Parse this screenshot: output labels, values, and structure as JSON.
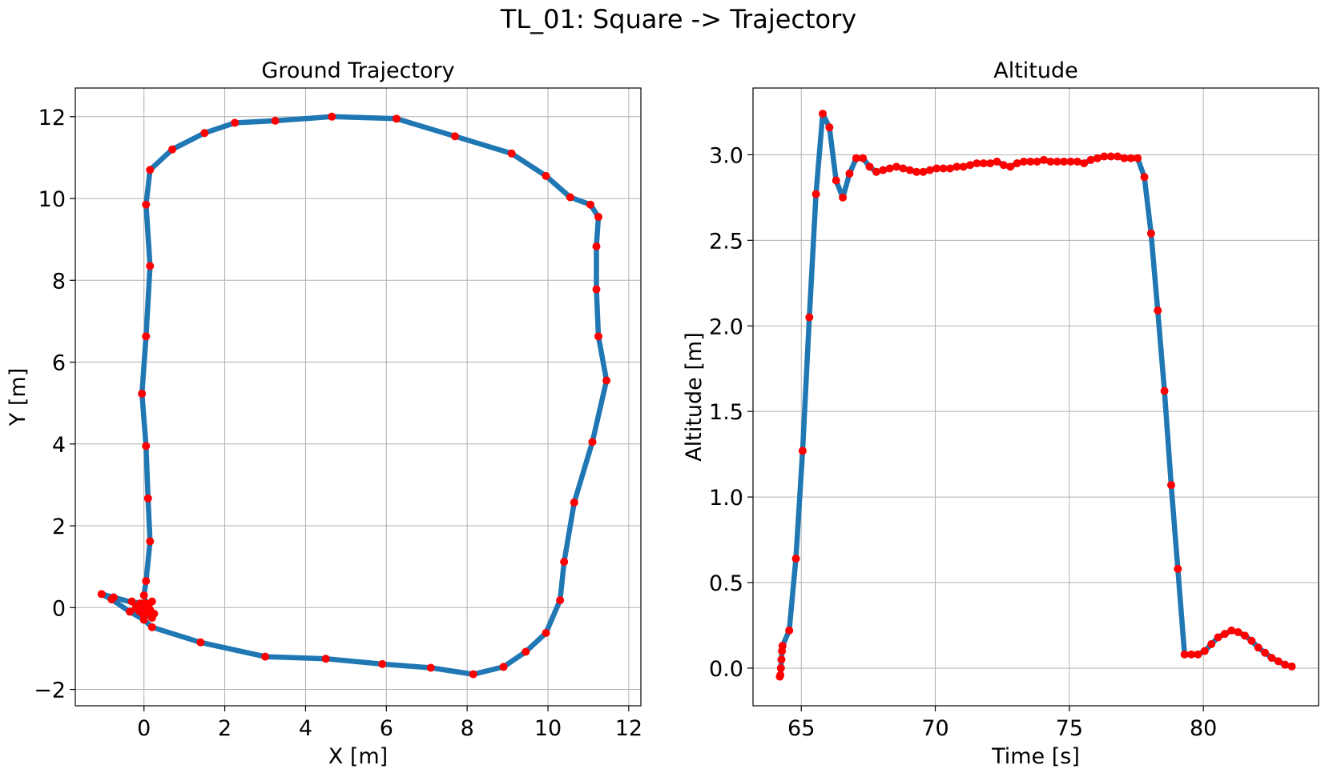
{
  "figure": {
    "title": "TL_01: Square -> Trajectory"
  },
  "colors": {
    "line": "#1f77b4",
    "marker": "#ff0000",
    "grid": "#b0b0b0",
    "axes": "#000000"
  },
  "chart_data": [
    {
      "type": "line",
      "title": "Ground Trajectory",
      "xlabel": "X [m]",
      "ylabel": "Y [m]",
      "xlim": [
        -1.7,
        12.3
      ],
      "ylim": [
        -2.4,
        12.7
      ],
      "xticks": [
        0,
        2,
        4,
        6,
        8,
        10,
        12
      ],
      "yticks": [
        -2,
        0,
        2,
        4,
        6,
        8,
        10,
        12
      ],
      "grid": true,
      "markers": true,
      "series": [
        {
          "x": [
            0.0,
            -0.1,
            0.1,
            -0.2,
            0.2,
            0.0,
            0.1,
            -0.3,
            0.2,
            -0.1,
            0.0,
            0.15,
            -0.05,
            0.25,
            0.05,
            -0.15,
            0.1,
            0.0,
            -0.75,
            -1.05,
            -0.8,
            -0.35,
            0.0,
            0.2,
            1.4,
            3.0,
            4.5,
            5.9,
            7.1,
            8.15,
            8.9,
            9.45,
            9.95,
            10.3,
            10.4,
            10.65,
            11.1,
            11.45,
            11.25,
            11.2,
            11.2,
            11.25,
            11.05,
            10.55,
            9.95,
            9.1,
            7.7,
            6.25,
            4.65,
            3.25,
            2.25,
            1.5,
            0.7,
            0.15,
            0.05,
            0.15,
            0.05,
            -0.05,
            0.05,
            0.1,
            0.15,
            0.05,
            0.0,
            0.05,
            0.0
          ],
          "y": [
            0.0,
            0.1,
            -0.1,
            0.0,
            0.15,
            -0.2,
            0.05,
            0.15,
            -0.25,
            -0.1,
            0.1,
            -0.05,
            0.05,
            -0.15,
            0.0,
            -0.05,
            -0.1,
            0.05,
            0.25,
            0.33,
            0.2,
            -0.1,
            -0.3,
            -0.48,
            -0.85,
            -1.2,
            -1.25,
            -1.38,
            -1.47,
            -1.63,
            -1.45,
            -1.08,
            -0.62,
            0.18,
            1.12,
            2.57,
            4.05,
            5.55,
            6.63,
            7.78,
            8.83,
            9.55,
            9.85,
            10.03,
            10.55,
            11.1,
            11.52,
            11.95,
            12.0,
            11.9,
            11.85,
            11.6,
            11.2,
            10.7,
            9.85,
            8.35,
            6.63,
            5.23,
            3.95,
            2.67,
            1.62,
            0.65,
            0.3,
            0.1,
            0.0
          ]
        }
      ]
    },
    {
      "type": "line",
      "title": "Altitude",
      "xlabel": "Time [s]",
      "ylabel": "Altitude [m]",
      "xlim": [
        63.2,
        84.3
      ],
      "ylim": [
        -0.22,
        3.39
      ],
      "xticks": [
        65,
        70,
        75,
        80
      ],
      "yticks": [
        0.0,
        0.5,
        1.0,
        1.5,
        2.0,
        2.5,
        3.0
      ],
      "grid": true,
      "markers": true,
      "series": [
        {
          "x": [
            64.2,
            64.22,
            64.24,
            64.26,
            64.28,
            64.3,
            64.55,
            64.8,
            65.05,
            65.3,
            65.55,
            65.8,
            66.05,
            66.3,
            66.55,
            66.8,
            67.05,
            67.3,
            67.55,
            67.8,
            68.05,
            68.3,
            68.55,
            68.8,
            69.05,
            69.3,
            69.55,
            69.8,
            70.05,
            70.3,
            70.55,
            70.8,
            71.05,
            71.3,
            71.55,
            71.8,
            72.05,
            72.3,
            72.55,
            72.8,
            73.05,
            73.3,
            73.55,
            73.8,
            74.05,
            74.3,
            74.55,
            74.8,
            75.05,
            75.3,
            75.55,
            75.8,
            76.05,
            76.3,
            76.55,
            76.8,
            77.05,
            77.3,
            77.55,
            77.8,
            78.05,
            78.3,
            78.55,
            78.8,
            79.05,
            79.3,
            79.55,
            79.8,
            80.05,
            80.3,
            80.55,
            80.8,
            81.05,
            81.3,
            81.55,
            81.8,
            82.05,
            82.3,
            82.55,
            82.8,
            83.05,
            83.3
          ],
          "y": [
            -0.05,
            -0.04,
            0.0,
            0.05,
            0.1,
            0.13,
            0.22,
            0.64,
            1.27,
            2.05,
            2.77,
            3.24,
            3.16,
            2.85,
            2.75,
            2.89,
            2.98,
            2.98,
            2.93,
            2.9,
            2.91,
            2.92,
            2.93,
            2.92,
            2.91,
            2.9,
            2.9,
            2.91,
            2.92,
            2.92,
            2.92,
            2.93,
            2.93,
            2.94,
            2.95,
            2.95,
            2.95,
            2.96,
            2.94,
            2.93,
            2.95,
            2.96,
            2.96,
            2.96,
            2.97,
            2.96,
            2.96,
            2.96,
            2.96,
            2.96,
            2.95,
            2.97,
            2.98,
            2.99,
            2.99,
            2.99,
            2.98,
            2.98,
            2.98,
            2.87,
            2.54,
            2.09,
            1.62,
            1.07,
            0.58,
            0.08,
            0.08,
            0.08,
            0.1,
            0.14,
            0.18,
            0.2,
            0.22,
            0.21,
            0.19,
            0.16,
            0.12,
            0.09,
            0.06,
            0.04,
            0.02,
            0.01
          ]
        }
      ]
    }
  ]
}
